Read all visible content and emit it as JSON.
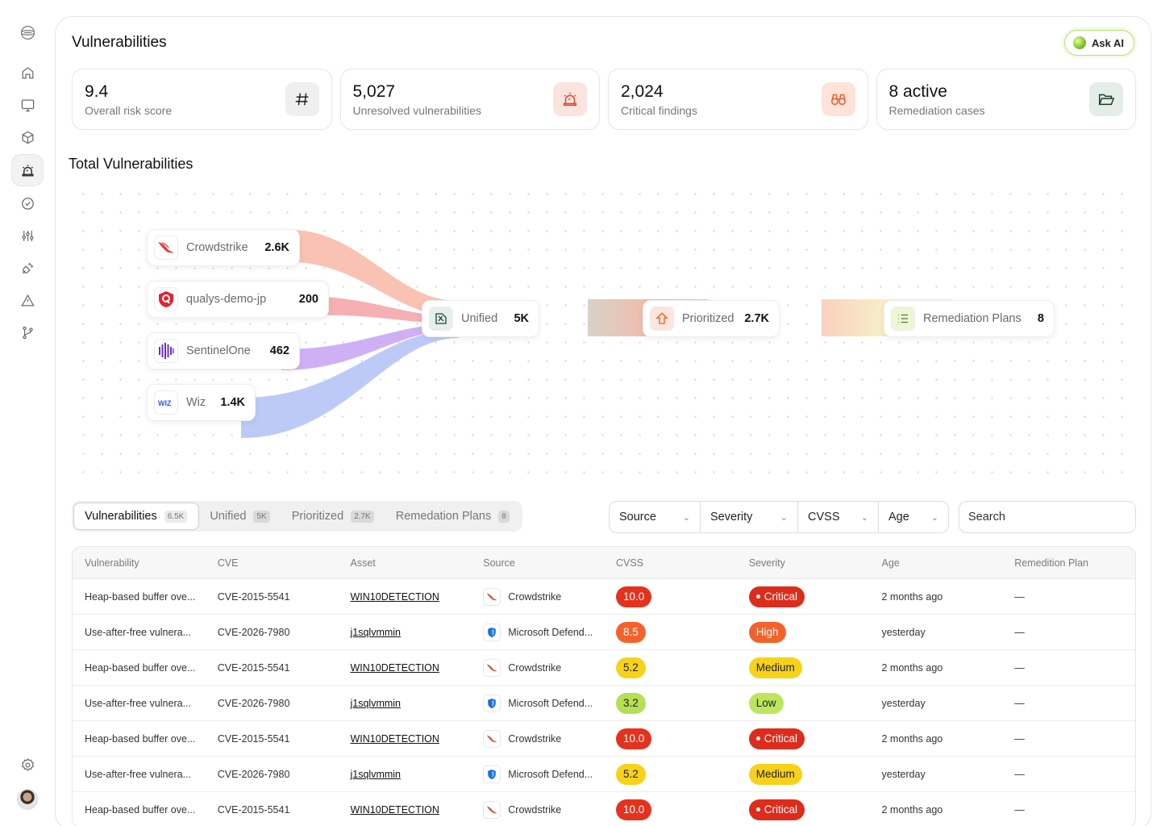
{
  "page": {
    "title": "Vulnerabilities",
    "ask_ai": "Ask AI"
  },
  "nav": [
    "logo-icon",
    "home-icon",
    "monitor-icon",
    "cube-icon",
    "alarm-icon",
    "check-circle-icon",
    "sliders-icon",
    "plug-icon",
    "warning-icon",
    "branch-icon",
    "settings-icon",
    "avatar"
  ],
  "stats": [
    {
      "value": "9.4",
      "label": "Overall risk score",
      "icon": "hash-icon",
      "bg": "#efefef",
      "fg": "#222222"
    },
    {
      "value": "5,027",
      "label": "Unresolved vulnerabilities",
      "icon": "alarm-icon",
      "bg": "#fbe3de",
      "fg": "#e0452e"
    },
    {
      "value": "2,024",
      "label": "Critical findings",
      "icon": "binoculars-icon",
      "bg": "#fde3da",
      "fg": "#ef5b2c"
    },
    {
      "value": "8 active",
      "label": "Remediation cases",
      "icon": "folder-icon",
      "bg": "#e4ede8",
      "fg": "#1f3a2e"
    }
  ],
  "flow": {
    "title": "Total Vulnerabilities",
    "sources": [
      {
        "name": "Crowdstrike",
        "count": "2.6K",
        "icon": "crowdstrike-icon",
        "color": "#f7a792"
      },
      {
        "name": "qualys-demo-jp",
        "count": "200",
        "icon": "qualys-icon",
        "color": "#f49ca2"
      },
      {
        "name": "SentinelOne",
        "count": "462",
        "icon": "sentinelone-icon",
        "color": "#c49ef2"
      },
      {
        "name": "Wiz",
        "count": "1.4K",
        "icon": "wiz-icon",
        "color": "#b6c4f7"
      }
    ],
    "stages": [
      {
        "name": "Unified",
        "count": "5K",
        "icon": "unified-icon"
      },
      {
        "name": "Prioritized",
        "count": "2.7K",
        "icon": "prioritized-icon"
      },
      {
        "name": "Remediation Plans",
        "count": "8",
        "icon": "list-icon"
      }
    ]
  },
  "tabs": [
    {
      "label": "Vulnerabilities",
      "badge": "6.5K",
      "active": true
    },
    {
      "label": "Unified",
      "badge": "5K",
      "active": false
    },
    {
      "label": "Prioritized",
      "badge": "2.7K",
      "active": false
    },
    {
      "label": "Remedation Plans",
      "badge": "8",
      "active": false
    }
  ],
  "filters": [
    "Source",
    "Severity",
    "CVSS",
    "Age"
  ],
  "search": {
    "placeholder": "Search"
  },
  "table": {
    "columns": [
      "Vulnerability",
      "CVE",
      "Asset",
      "Source",
      "CVSS",
      "Severity",
      "Age",
      "Remedition Plan"
    ],
    "rows": [
      {
        "vuln": "Heap-based buffer ove...",
        "cve": "CVE-2015-5541",
        "asset": "WIN10DETECTION",
        "source": "Crowdstrike",
        "cvss": "10.0",
        "cvss_level": "red",
        "severity": "Critical",
        "age": "2 months ago",
        "plan": "—"
      },
      {
        "vuln": "Use-after-free vulnera...",
        "cve": "CVE-2026-7980",
        "asset": "j1sqlvmmin",
        "source": "Microsoft Defend...",
        "cvss": "8.5",
        "cvss_level": "orange",
        "severity": "High",
        "age": "yesterday",
        "plan": "—"
      },
      {
        "vuln": "Heap-based buffer ove...",
        "cve": "CVE-2015-5541",
        "asset": "WIN10DETECTION",
        "source": "Crowdstrike",
        "cvss": "5.2",
        "cvss_level": "yellow",
        "severity": "Medium",
        "age": "2 months ago",
        "plan": "—"
      },
      {
        "vuln": "Use-after-free vulnera...",
        "cve": "CVE-2026-7980",
        "asset": "j1sqlvmmin",
        "source": "Microsoft Defend...",
        "cvss": "3.2",
        "cvss_level": "green",
        "severity": "Low",
        "age": "yesterday",
        "plan": "—"
      },
      {
        "vuln": "Heap-based buffer ove...",
        "cve": "CVE-2015-5541",
        "asset": "WIN10DETECTION",
        "source": "Crowdstrike",
        "cvss": "10.0",
        "cvss_level": "red",
        "severity": "Critical",
        "age": "2 months ago",
        "plan": "—"
      },
      {
        "vuln": "Use-after-free vulnera...",
        "cve": "CVE-2026-7980",
        "asset": "j1sqlvmmin",
        "source": "Microsoft Defend...",
        "cvss": "5.2",
        "cvss_level": "yellow",
        "severity": "Medium",
        "age": "yesterday",
        "plan": "—"
      },
      {
        "vuln": "Heap-based buffer ove...",
        "cve": "CVE-2015-5541",
        "asset": "WIN10DETECTION",
        "source": "Crowdstrike",
        "cvss": "10.0",
        "cvss_level": "red",
        "severity": "Critical",
        "age": "2 months ago",
        "plan": "—"
      }
    ]
  }
}
